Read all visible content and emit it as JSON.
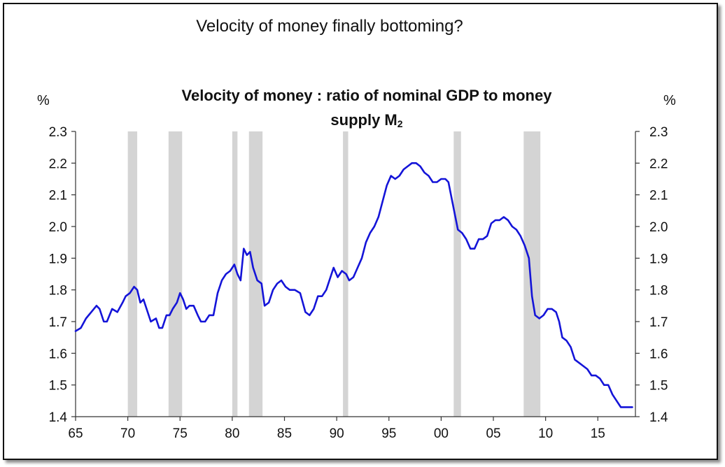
{
  "header": {
    "title": "Velocity of money finally bottoming?"
  },
  "chart_data": {
    "type": "line",
    "title_line1": "Velocity of money : ratio of nominal GDP to money",
    "title_line2_main": "supply M",
    "title_line2_sub": "2",
    "ylabel_left": "%",
    "ylabel_right": "%",
    "xlim": [
      1965,
      2018.6
    ],
    "ylim": [
      1.4,
      2.3
    ],
    "yticks": [
      {
        "value": 2.3,
        "label": "2.3"
      },
      {
        "value": 2.2,
        "label": "2.2"
      },
      {
        "value": 2.1,
        "label": "2.1"
      },
      {
        "value": 2.0,
        "label": "2.0"
      },
      {
        "value": 1.9,
        "label": "1.9"
      },
      {
        "value": 1.8,
        "label": "1.8"
      },
      {
        "value": 1.7,
        "label": "1.7"
      },
      {
        "value": 1.6,
        "label": "1.6"
      },
      {
        "value": 1.5,
        "label": "1.5"
      },
      {
        "value": 1.4,
        "label": "1.4"
      }
    ],
    "xticks": [
      {
        "value": 1965,
        "label": "65"
      },
      {
        "value": 1970,
        "label": "70"
      },
      {
        "value": 1975,
        "label": "75"
      },
      {
        "value": 1980,
        "label": "80"
      },
      {
        "value": 1985,
        "label": "85"
      },
      {
        "value": 1990,
        "label": "90"
      },
      {
        "value": 1995,
        "label": "95"
      },
      {
        "value": 2000,
        "label": "00"
      },
      {
        "value": 2005,
        "label": "05"
      },
      {
        "value": 2010,
        "label": "10"
      },
      {
        "value": 2015,
        "label": "15"
      }
    ],
    "recessions": [
      {
        "start": 1970.0,
        "end": 1970.9
      },
      {
        "start": 1973.9,
        "end": 1975.2
      },
      {
        "start": 1980.0,
        "end": 1980.5
      },
      {
        "start": 1981.6,
        "end": 1982.9
      },
      {
        "start": 1990.6,
        "end": 1991.1
      },
      {
        "start": 2001.2,
        "end": 2001.9
      },
      {
        "start": 2007.9,
        "end": 2009.5
      }
    ],
    "series": [
      {
        "color": "#1414d8",
        "points": [
          [
            1965.0,
            1.67
          ],
          [
            1965.5,
            1.68
          ],
          [
            1966.0,
            1.71
          ],
          [
            1966.5,
            1.73
          ],
          [
            1967.0,
            1.75
          ],
          [
            1967.3,
            1.74
          ],
          [
            1967.7,
            1.7
          ],
          [
            1968.0,
            1.7
          ],
          [
            1968.5,
            1.74
          ],
          [
            1969.0,
            1.73
          ],
          [
            1969.5,
            1.76
          ],
          [
            1969.8,
            1.78
          ],
          [
            1970.2,
            1.79
          ],
          [
            1970.6,
            1.81
          ],
          [
            1970.9,
            1.8
          ],
          [
            1971.2,
            1.76
          ],
          [
            1971.5,
            1.77
          ],
          [
            1971.8,
            1.74
          ],
          [
            1972.2,
            1.7
          ],
          [
            1972.7,
            1.71
          ],
          [
            1973.0,
            1.68
          ],
          [
            1973.3,
            1.68
          ],
          [
            1973.7,
            1.72
          ],
          [
            1974.0,
            1.72
          ],
          [
            1974.3,
            1.74
          ],
          [
            1974.7,
            1.76
          ],
          [
            1975.0,
            1.79
          ],
          [
            1975.3,
            1.77
          ],
          [
            1975.6,
            1.74
          ],
          [
            1975.9,
            1.75
          ],
          [
            1976.3,
            1.75
          ],
          [
            1976.7,
            1.72
          ],
          [
            1977.0,
            1.7
          ],
          [
            1977.4,
            1.7
          ],
          [
            1977.8,
            1.72
          ],
          [
            1978.2,
            1.72
          ],
          [
            1978.6,
            1.79
          ],
          [
            1979.0,
            1.83
          ],
          [
            1979.4,
            1.85
          ],
          [
            1979.8,
            1.86
          ],
          [
            1980.2,
            1.88
          ],
          [
            1980.5,
            1.85
          ],
          [
            1980.8,
            1.83
          ],
          [
            1981.1,
            1.93
          ],
          [
            1981.4,
            1.91
          ],
          [
            1981.7,
            1.92
          ],
          [
            1982.0,
            1.87
          ],
          [
            1982.4,
            1.83
          ],
          [
            1982.8,
            1.82
          ],
          [
            1983.1,
            1.75
          ],
          [
            1983.5,
            1.76
          ],
          [
            1983.9,
            1.8
          ],
          [
            1984.3,
            1.82
          ],
          [
            1984.7,
            1.83
          ],
          [
            1985.1,
            1.81
          ],
          [
            1985.5,
            1.8
          ],
          [
            1986.0,
            1.8
          ],
          [
            1986.5,
            1.79
          ],
          [
            1987.0,
            1.73
          ],
          [
            1987.4,
            1.72
          ],
          [
            1987.8,
            1.74
          ],
          [
            1988.2,
            1.78
          ],
          [
            1988.6,
            1.78
          ],
          [
            1989.0,
            1.8
          ],
          [
            1989.4,
            1.84
          ],
          [
            1989.7,
            1.87
          ],
          [
            1990.1,
            1.84
          ],
          [
            1990.5,
            1.86
          ],
          [
            1990.9,
            1.85
          ],
          [
            1991.2,
            1.83
          ],
          [
            1991.6,
            1.84
          ],
          [
            1992.0,
            1.87
          ],
          [
            1992.4,
            1.9
          ],
          [
            1992.8,
            1.95
          ],
          [
            1993.2,
            1.98
          ],
          [
            1993.6,
            2.0
          ],
          [
            1994.0,
            2.03
          ],
          [
            1994.4,
            2.08
          ],
          [
            1994.8,
            2.13
          ],
          [
            1995.2,
            2.16
          ],
          [
            1995.6,
            2.15
          ],
          [
            1996.0,
            2.16
          ],
          [
            1996.4,
            2.18
          ],
          [
            1996.8,
            2.19
          ],
          [
            1997.2,
            2.2
          ],
          [
            1997.6,
            2.2
          ],
          [
            1998.0,
            2.19
          ],
          [
            1998.4,
            2.17
          ],
          [
            1998.8,
            2.16
          ],
          [
            1999.2,
            2.14
          ],
          [
            1999.6,
            2.14
          ],
          [
            2000.0,
            2.15
          ],
          [
            2000.4,
            2.15
          ],
          [
            2000.7,
            2.14
          ],
          [
            2001.0,
            2.09
          ],
          [
            2001.3,
            2.04
          ],
          [
            2001.6,
            1.99
          ],
          [
            2002.0,
            1.98
          ],
          [
            2002.4,
            1.96
          ],
          [
            2002.8,
            1.93
          ],
          [
            2003.2,
            1.93
          ],
          [
            2003.6,
            1.96
          ],
          [
            2004.0,
            1.96
          ],
          [
            2004.4,
            1.97
          ],
          [
            2004.8,
            2.01
          ],
          [
            2005.2,
            2.02
          ],
          [
            2005.6,
            2.02
          ],
          [
            2006.0,
            2.03
          ],
          [
            2006.4,
            2.02
          ],
          [
            2006.8,
            2.0
          ],
          [
            2007.2,
            1.99
          ],
          [
            2007.6,
            1.97
          ],
          [
            2008.0,
            1.94
          ],
          [
            2008.4,
            1.9
          ],
          [
            2008.7,
            1.78
          ],
          [
            2009.0,
            1.72
          ],
          [
            2009.4,
            1.71
          ],
          [
            2009.8,
            1.72
          ],
          [
            2010.2,
            1.74
          ],
          [
            2010.6,
            1.74
          ],
          [
            2011.0,
            1.73
          ],
          [
            2011.3,
            1.7
          ],
          [
            2011.6,
            1.65
          ],
          [
            2012.0,
            1.64
          ],
          [
            2012.4,
            1.62
          ],
          [
            2012.8,
            1.58
          ],
          [
            2013.2,
            1.57
          ],
          [
            2013.6,
            1.56
          ],
          [
            2014.0,
            1.55
          ],
          [
            2014.4,
            1.53
          ],
          [
            2014.8,
            1.53
          ],
          [
            2015.2,
            1.52
          ],
          [
            2015.6,
            1.5
          ],
          [
            2016.0,
            1.5
          ],
          [
            2016.4,
            1.47
          ],
          [
            2016.8,
            1.45
          ],
          [
            2017.2,
            1.43
          ],
          [
            2017.6,
            1.43
          ],
          [
            2018.0,
            1.43
          ],
          [
            2018.3,
            1.43
          ]
        ]
      }
    ]
  }
}
